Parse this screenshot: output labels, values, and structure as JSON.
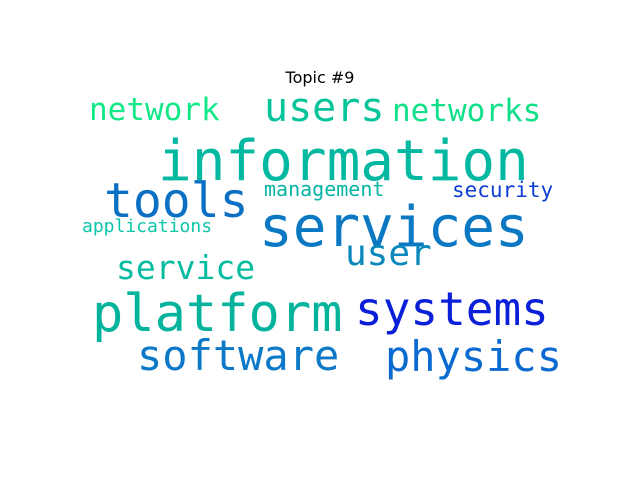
{
  "title": "Topic #9",
  "words": [
    {
      "text": "information",
      "color": "#02b8a0"
    },
    {
      "text": "services",
      "color": "#0a78c2"
    },
    {
      "text": "platform",
      "color": "#03b39b"
    },
    {
      "text": "systems",
      "color": "#0a1fd8"
    },
    {
      "text": "software",
      "color": "#0b78c8"
    },
    {
      "text": "physics",
      "color": "#0b6ad0"
    },
    {
      "text": "tools",
      "color": "#0b70c4"
    },
    {
      "text": "users",
      "color": "#06c49a"
    },
    {
      "text": "networks",
      "color": "#11e08a"
    },
    {
      "text": "network",
      "color": "#13e888"
    },
    {
      "text": "user",
      "color": "#0a87bb"
    },
    {
      "text": "service",
      "color": "#05bca0"
    },
    {
      "text": "management",
      "color": "#05b4a3"
    },
    {
      "text": "security",
      "color": "#0c3ed4"
    },
    {
      "text": "applications",
      "color": "#0bc6a8"
    }
  ]
}
